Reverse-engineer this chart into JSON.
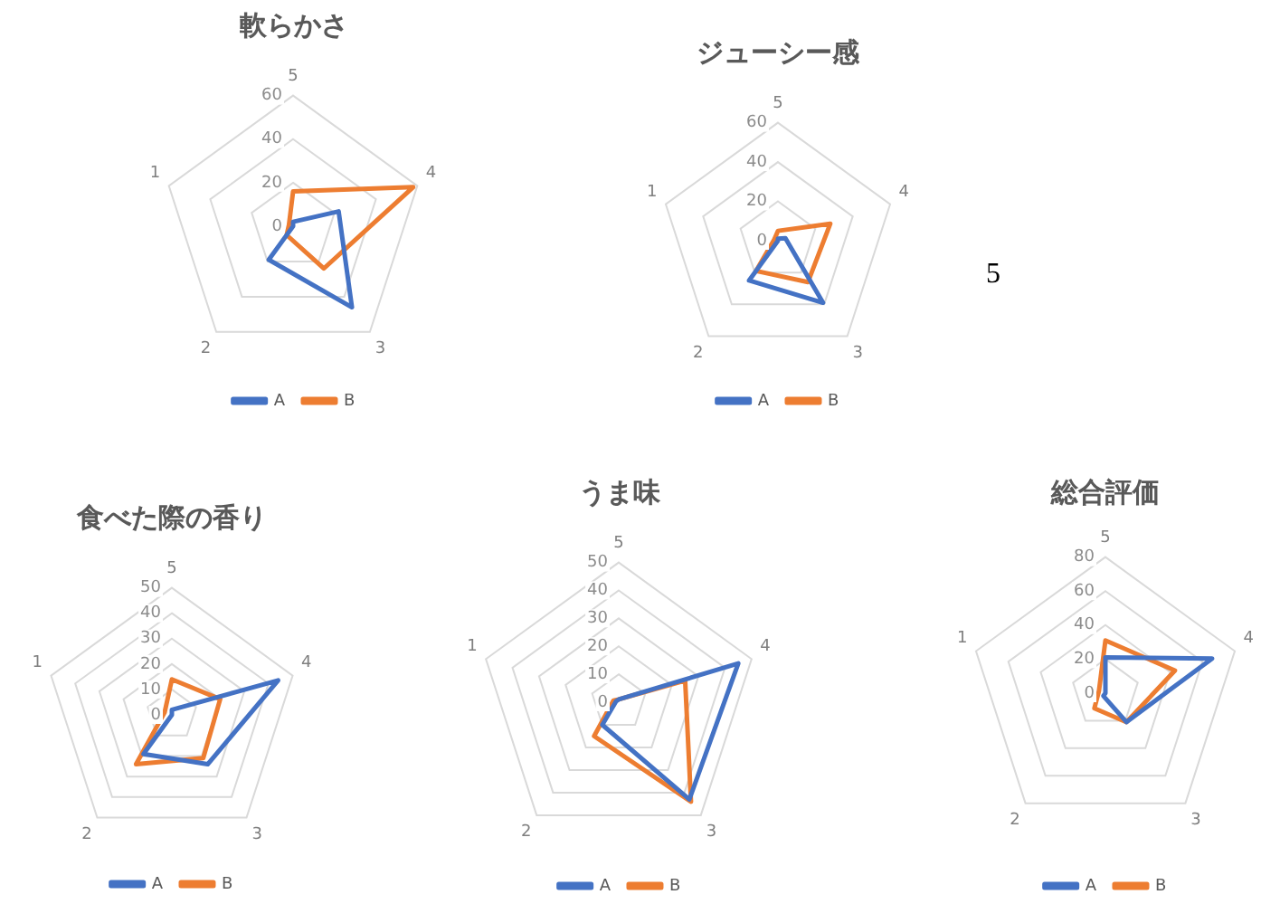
{
  "chart_data": [
    {
      "type": "radar",
      "title": "軟らかさ",
      "categories": [
        "5",
        "4",
        "3",
        "2",
        "1"
      ],
      "ylim": [
        0,
        60
      ],
      "yticks": [
        0,
        20,
        40,
        60
      ],
      "grid": true,
      "legend": "bottom",
      "marker": "none",
      "series": [
        {
          "name": "A",
          "color": "#4472c4",
          "values": [
            2,
            22,
            46,
            19,
            0
          ]
        },
        {
          "name": "B",
          "color": "#ed7d31",
          "values": [
            16,
            58,
            24,
            5,
            2
          ]
        }
      ]
    },
    {
      "type": "radar",
      "title": "ジューシー感",
      "categories": [
        "5",
        "4",
        "3",
        "2",
        "1"
      ],
      "ylim": [
        0,
        60
      ],
      "yticks": [
        0,
        20,
        40,
        60
      ],
      "grid": true,
      "legend": "bottom",
      "marker": "none",
      "annotations": [
        "5"
      ],
      "series": [
        {
          "name": "A",
          "color": "#4472c4",
          "values": [
            1,
            4,
            39,
            25,
            0
          ]
        },
        {
          "name": "B",
          "color": "#ed7d31",
          "values": [
            5,
            28,
            26,
            19,
            2
          ]
        }
      ]
    },
    {
      "type": "radar",
      "title": "食べた際の香り",
      "categories": [
        "5",
        "4",
        "3",
        "2",
        "1"
      ],
      "ylim": [
        0,
        50
      ],
      "yticks": [
        0,
        10,
        20,
        30,
        40,
        50
      ],
      "grid": true,
      "legend": "bottom",
      "marker": "none",
      "series": [
        {
          "name": "A",
          "color": "#4472c4",
          "values": [
            2,
            44,
            24,
            19,
            0
          ]
        },
        {
          "name": "B",
          "color": "#ed7d31",
          "values": [
            14,
            20,
            21,
            24,
            3
          ]
        }
      ]
    },
    {
      "type": "radar",
      "title": "うま味",
      "categories": [
        "5",
        "4",
        "3",
        "2",
        "1"
      ],
      "ylim": [
        0,
        50
      ],
      "yticks": [
        0,
        10,
        20,
        30,
        40,
        50
      ],
      "grid": true,
      "legend": "bottom",
      "marker": "none",
      "series": [
        {
          "name": "A",
          "color": "#4472c4",
          "values": [
            1,
            45,
            43,
            10,
            1
          ]
        },
        {
          "name": "B",
          "color": "#ed7d31",
          "values": [
            1,
            25,
            44,
            15,
            2
          ]
        }
      ]
    },
    {
      "type": "radar",
      "title": "総合評価",
      "categories": [
        "5",
        "4",
        "3",
        "2",
        "1"
      ],
      "ylim": [
        0,
        80
      ],
      "yticks": [
        0,
        20,
        40,
        60,
        80
      ],
      "grid": true,
      "legend": "bottom",
      "marker": "none",
      "series": [
        {
          "name": "A",
          "color": "#4472c4",
          "values": [
            21,
            66,
            21,
            2,
            0
          ]
        },
        {
          "name": "B",
          "color": "#ed7d31",
          "values": [
            31,
            43,
            21,
            11,
            4
          ]
        }
      ]
    }
  ]
}
